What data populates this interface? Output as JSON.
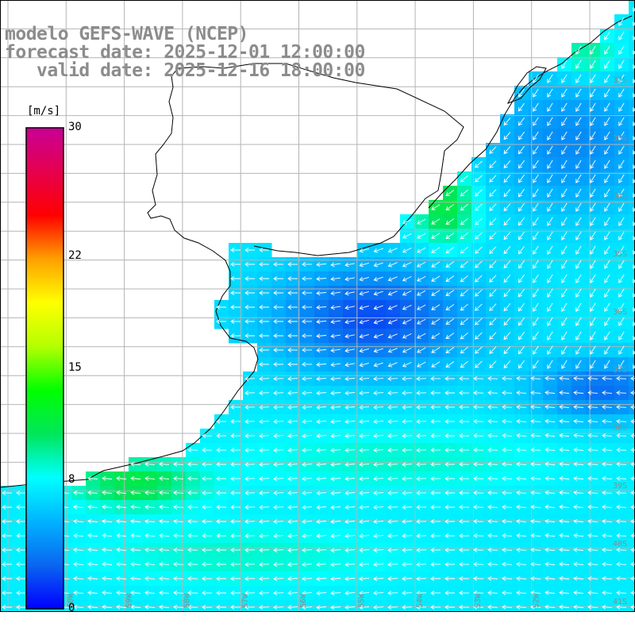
{
  "title": {
    "line1": "modelo GEFS-WAVE (NCEP)",
    "line2": "forecast date: 2025-12-01 12:00:00",
    "line3": "   valid date: 2025-12-16 18:00:00"
  },
  "colorbar": {
    "unit_label": "[m/s]",
    "min": 0,
    "max": 30,
    "ticks": [
      {
        "value": 30,
        "label": "30"
      },
      {
        "value": 22,
        "label": "22"
      },
      {
        "value": 15,
        "label": "15"
      },
      {
        "value": 8,
        "label": "8"
      },
      {
        "value": 0,
        "label": "0"
      }
    ],
    "stops": [
      "#0000ff",
      "#0a66f0",
      "#00b4ff",
      "#00ffff",
      "#00e65a",
      "#00ff00",
      "#b4ff00",
      "#ffff00",
      "#ffa000",
      "#ff0000",
      "#e6004e",
      "#c80096"
    ]
  },
  "map": {
    "variable": "wind speed",
    "lat_labels": [
      "32S",
      "33S",
      "34S",
      "35S",
      "36S",
      "37S",
      "38S",
      "39S",
      "40S",
      "41S"
    ],
    "lon_labels": [
      "60W",
      "59W",
      "58W",
      "57W",
      "56W",
      "55W",
      "54W",
      "53W",
      "52W"
    ],
    "land_color": "#ffffff",
    "grid_color": "#b4b4b4"
  }
}
